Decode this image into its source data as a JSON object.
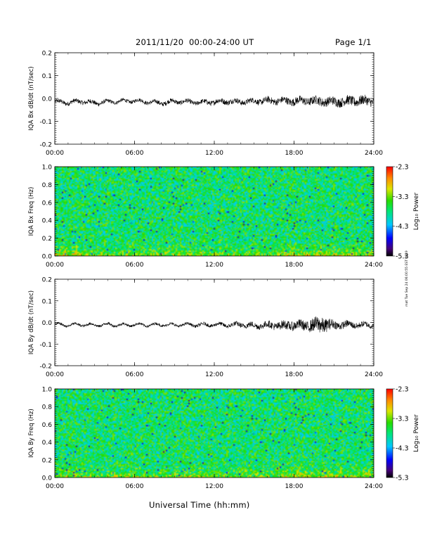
{
  "header": {
    "title": "2011/11/20  00:00-24:00 UT",
    "page": "Page 1/1"
  },
  "side_stamp": "mat Tue Sep 24 06:00:55 EST 2019",
  "x_axis_label": "Universal Time (hh:mm)",
  "time_ticks": [
    "00:00",
    "06:00",
    "12:00",
    "18:00",
    "24:00"
  ],
  "colorbar": {
    "label": "Log₁₀ Power",
    "ticks": [
      "-2.3",
      "-3.3",
      "-4.3",
      "-5.3"
    ],
    "range": [
      -5.3,
      -2.3
    ]
  },
  "chart_data": [
    {
      "type": "line",
      "ylabel": "IQA Bx dB/dt (nT/sec)",
      "ylim": [
        -0.2,
        0.2
      ],
      "yticks": [
        "0.2",
        "0.1",
        "0.0",
        "-0.1",
        "-0.2"
      ],
      "xlim": [
        0,
        24
      ],
      "x_unit": "hours UT",
      "series": [
        {
          "x": [
            0,
            1,
            2,
            3,
            4,
            5,
            6,
            7,
            8,
            9,
            10,
            11,
            12,
            13,
            14,
            15,
            16,
            17,
            18,
            19,
            20,
            21,
            22,
            23,
            24
          ],
          "y": [
            -0.015,
            -0.018,
            -0.012,
            -0.02,
            -0.015,
            -0.012,
            -0.01,
            -0.015,
            -0.02,
            -0.013,
            -0.015,
            -0.018,
            -0.015,
            -0.012,
            -0.015,
            -0.012,
            -0.01,
            -0.01,
            -0.012,
            -0.01,
            -0.012,
            -0.015,
            -0.012,
            -0.01,
            -0.012
          ],
          "noise": [
            0.01,
            0.01,
            0.01,
            0.01,
            0.008,
            0.008,
            0.008,
            0.008,
            0.01,
            0.01,
            0.01,
            0.01,
            0.012,
            0.012,
            0.012,
            0.012,
            0.015,
            0.015,
            0.018,
            0.018,
            0.02,
            0.02,
            0.022,
            0.022,
            0.02
          ]
        }
      ]
    },
    {
      "type": "heatmap",
      "ylabel": "IQA Bx Freq (Hz)",
      "ylim": [
        0.0,
        1.0
      ],
      "yticks": [
        "1.0",
        "0.8",
        "0.6",
        "0.4",
        "0.2",
        "0.0"
      ],
      "xlim": [
        0,
        24
      ],
      "zlim": [
        -5.3,
        -2.3
      ]
    },
    {
      "type": "line",
      "ylabel": "IQA By dB/dt (nT/sec)",
      "ylim": [
        -0.2,
        0.2
      ],
      "yticks": [
        "0.2",
        "0.1",
        "0.0",
        "-0.1",
        "-0.2"
      ],
      "xlim": [
        0,
        24
      ],
      "x_unit": "hours UT",
      "series": [
        {
          "x": [
            0,
            1,
            2,
            3,
            4,
            5,
            6,
            7,
            8,
            9,
            10,
            11,
            12,
            13,
            14,
            15,
            16,
            17,
            18,
            19,
            20,
            21,
            22,
            23,
            24
          ],
          "y": [
            -0.01,
            -0.012,
            -0.01,
            -0.012,
            -0.01,
            -0.012,
            -0.01,
            -0.012,
            -0.01,
            -0.012,
            -0.01,
            -0.012,
            -0.01,
            -0.012,
            -0.01,
            -0.015,
            -0.012,
            -0.015,
            -0.012,
            -0.015,
            -0.01,
            -0.012,
            -0.01,
            -0.012,
            -0.012
          ],
          "noise": [
            0.006,
            0.006,
            0.006,
            0.006,
            0.006,
            0.006,
            0.006,
            0.006,
            0.006,
            0.006,
            0.006,
            0.008,
            0.008,
            0.01,
            0.012,
            0.014,
            0.016,
            0.02,
            0.022,
            0.025,
            0.04,
            0.02,
            0.016,
            0.014,
            0.012
          ]
        }
      ]
    },
    {
      "type": "heatmap",
      "ylabel": "IQA By Freq (Hz)",
      "ylim": [
        0.0,
        1.0
      ],
      "yticks": [
        "1.0",
        "0.8",
        "0.6",
        "0.4",
        "0.2",
        "0.0"
      ],
      "xlim": [
        0,
        24
      ],
      "zlim": [
        -5.3,
        -2.3
      ]
    }
  ]
}
